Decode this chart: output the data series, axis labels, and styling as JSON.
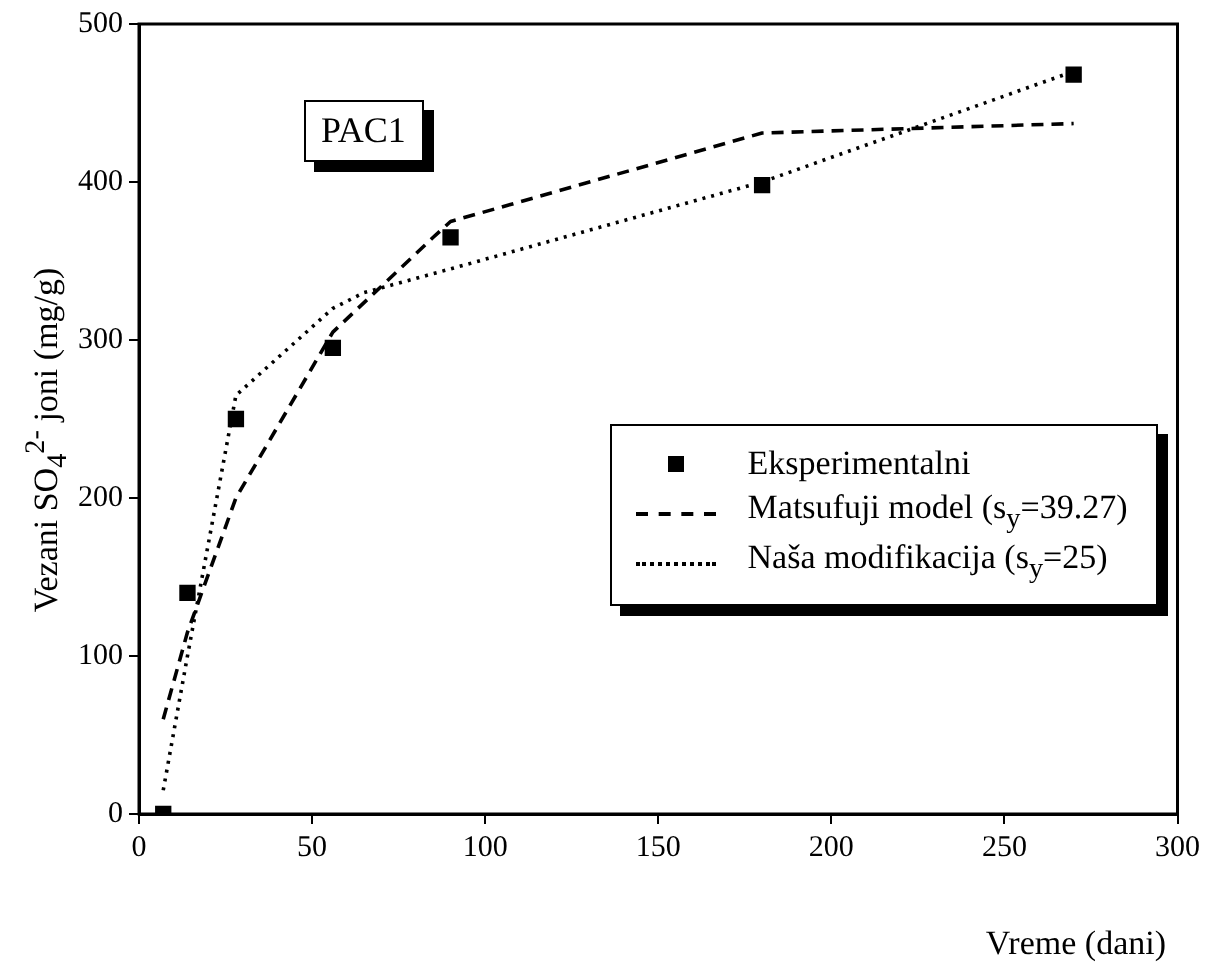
{
  "chart_data": {
    "type": "line",
    "xlabel": "Vreme (dani)",
    "ylabel": "Vezani SO$_{4}$$^{2-}$ joni (mg/g)",
    "xlim": [
      0,
      300
    ],
    "xticks": [
      0,
      50,
      100,
      150,
      200,
      250,
      300
    ],
    "ylim": [
      0,
      500
    ],
    "yticks": [
      0,
      100,
      200,
      300,
      400,
      500
    ],
    "grid": false,
    "legend": "right",
    "annotations": [
      "PAC1"
    ],
    "series": [
      {
        "name": "Eksperimentalni",
        "type": "scatter",
        "marker": "square",
        "color": "#000000",
        "x": [
          7,
          14,
          28,
          56,
          90,
          180,
          270
        ],
        "values": [
          0,
          140,
          250,
          295,
          365,
          398,
          468
        ]
      },
      {
        "name": "Matsufuji model (s$_{y}$=39.27)",
        "type": "line",
        "line_style": "dashed",
        "color": "#000000",
        "x": [
          7,
          14,
          28,
          56,
          85,
          90,
          180,
          270
        ],
        "values": [
          60,
          115,
          200,
          305,
          365,
          375,
          431,
          437
        ]
      },
      {
        "name": "Naša modifikacija (s$_{y}$=25)",
        "type": "line",
        "line_style": "dotted",
        "color": "#000000",
        "x": [
          7,
          14,
          28,
          56,
          65,
          90,
          180,
          270
        ],
        "values": [
          15,
          100,
          265,
          320,
          330,
          345,
          400,
          470
        ]
      }
    ]
  }
}
